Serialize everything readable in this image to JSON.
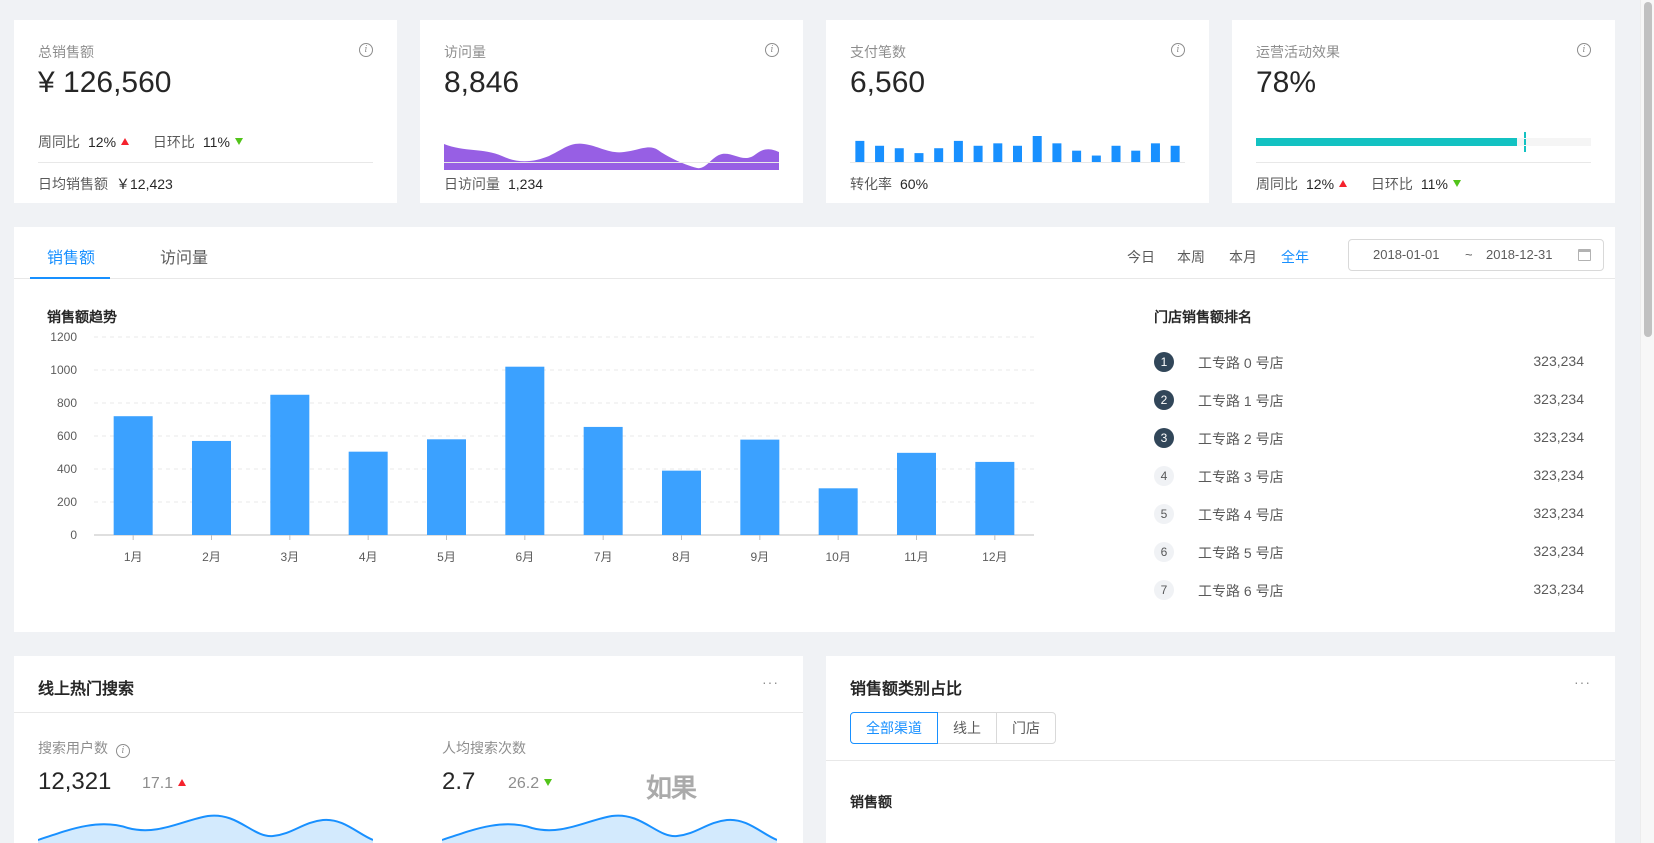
{
  "kpis": {
    "sales": {
      "title": "总销售额",
      "value": "¥ 126,560",
      "week_label": "周同比",
      "week_pct": "12%",
      "day_label": "日环比",
      "day_pct": "11%",
      "footer_label": "日均销售额",
      "footer_value": "￥12,423"
    },
    "visits": {
      "title": "访问量",
      "value": "8,846",
      "footer_label": "日访问量",
      "footer_value": "1,234",
      "area_color": "#975fe4"
    },
    "payments": {
      "title": "支付笔数",
      "value": "6,560",
      "footer_label": "转化率",
      "footer_value": "60%",
      "bars": [
        7,
        5,
        4,
        2,
        4,
        7,
        5,
        6,
        5,
        9,
        6,
        3,
        1,
        5,
        3,
        6,
        5
      ],
      "bar_color": "#1890ff"
    },
    "campaign": {
      "title": "运营活动效果",
      "value": "78%",
      "progress": 0.78,
      "target": 0.8,
      "week_label": "周同比",
      "week_pct": "12%",
      "day_label": "日环比",
      "day_pct": "11%",
      "bar_color": "#13c2c2"
    }
  },
  "sales_card": {
    "tabs": [
      "销售额",
      "访问量"
    ],
    "ranges": [
      "今日",
      "本周",
      "本月",
      "全年"
    ],
    "date_start": "2018-01-01",
    "date_sep": "~",
    "date_end": "2018-12-31",
    "chart_title": "销售额趋势",
    "ranking_title": "门店销售额排名",
    "ranking": [
      {
        "no": "1",
        "name": "工专路 0 号店",
        "value": "323,234"
      },
      {
        "no": "2",
        "name": "工专路 1 号店",
        "value": "323,234"
      },
      {
        "no": "3",
        "name": "工专路 2 号店",
        "value": "323,234"
      },
      {
        "no": "4",
        "name": "工专路 3 号店",
        "value": "323,234"
      },
      {
        "no": "5",
        "name": "工专路 4 号店",
        "value": "323,234"
      },
      {
        "no": "6",
        "name": "工专路 5 号店",
        "value": "323,234"
      },
      {
        "no": "7",
        "name": "工专路 6 号店",
        "value": "323,234"
      }
    ]
  },
  "chart_data": {
    "type": "bar",
    "title": "销售额趋势",
    "categories": [
      "1月",
      "2月",
      "3月",
      "4月",
      "5月",
      "6月",
      "7月",
      "8月",
      "9月",
      "10月",
      "11月",
      "12月"
    ],
    "values": [
      720,
      570,
      850,
      505,
      580,
      1020,
      655,
      390,
      578,
      283,
      498,
      443
    ],
    "ylim": [
      0,
      1200
    ],
    "yticks": [
      "0",
      "200",
      "400",
      "600",
      "800",
      "1000",
      "1200"
    ],
    "grid": true,
    "color": "#3ba1ff"
  },
  "hot_search": {
    "title": "线上热门搜索",
    "more": "···",
    "users_label": "搜索用户数",
    "users_value": "12,321",
    "users_change": "17.1",
    "per_user_label": "人均搜索次数",
    "per_user_value": "2.7",
    "per_user_change": "26.2",
    "watermark": "如果"
  },
  "category": {
    "title": "销售额类别占比",
    "more": "···",
    "segments": [
      "全部渠道",
      "线上",
      "门店"
    ],
    "subtitle": "销售额"
  }
}
